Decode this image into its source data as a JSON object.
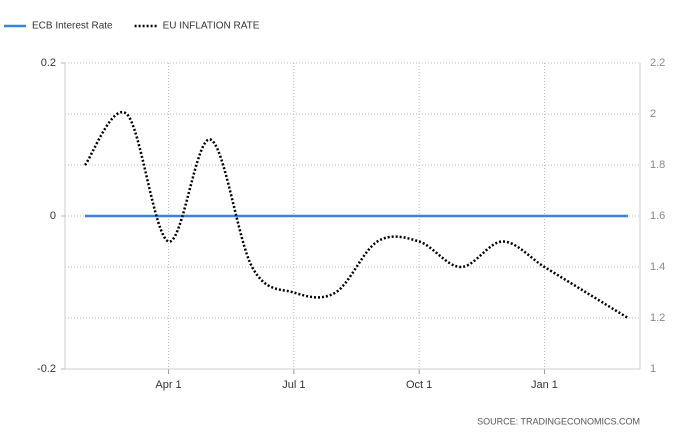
{
  "chart_data": {
    "type": "line",
    "categories": [
      null,
      null,
      "Apr 1",
      null,
      null,
      "Jul 1",
      null,
      null,
      "Oct 1",
      null,
      null,
      "Jan 1",
      null,
      null
    ],
    "series": [
      {
        "name": "ECB Interest Rate",
        "color": "#3b82e0",
        "values": [
          0,
          0,
          0,
          0,
          0,
          0,
          0,
          0,
          0,
          0,
          0,
          0,
          0,
          0
        ]
      },
      {
        "name": "EU INFLATION RATE",
        "color": "#000000",
        "axis": "y2",
        "dash": true,
        "values": [
          1.8,
          2.0,
          1.5,
          1.9,
          1.4,
          1.3,
          1.3,
          1.5,
          1.5,
          1.4,
          1.5,
          1.4,
          1.3,
          1.2
        ]
      }
    ],
    "ylim": [
      -0.2,
      0.2
    ],
    "yticks": [
      -0.2,
      0,
      0.2
    ],
    "y2lim": [
      1,
      2.2
    ],
    "y2ticks": [
      1,
      1.2,
      1.4,
      1.6,
      1.8,
      2,
      2.2
    ],
    "grid": true,
    "source": "SOURCE: TRADINGECONOMICS.COM"
  }
}
